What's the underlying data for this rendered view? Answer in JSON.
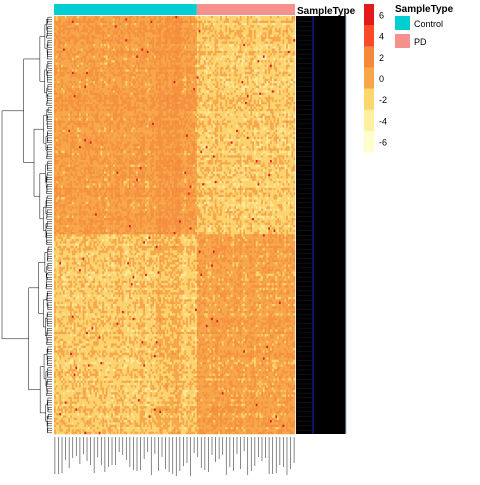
{
  "chart_data": {
    "type": "heatmap",
    "title": "",
    "annotation": {
      "title": "SampleType",
      "levels": [
        {
          "name": "Control",
          "color": "#00CED1"
        },
        {
          "name": "PD",
          "color": "#F4918C"
        }
      ],
      "counts": {
        "Control": 80,
        "PD": 55
      }
    },
    "color_scale": {
      "breaks": [
        6,
        4,
        2,
        0,
        -2,
        -4,
        -6
      ],
      "tick_labels": [
        "6",
        "4",
        "2",
        "0",
        "-2",
        "-4",
        "-6"
      ],
      "colors": [
        "#E31A1C",
        "#FF3F1F",
        "#F5883A",
        "#F7A64A",
        "#FDD66E",
        "#FFEFA0",
        "#FFFFCC"
      ]
    },
    "n_rows": 180,
    "row_label_color": "#000000",
    "column_labels_note": "column labels not legible"
  }
}
